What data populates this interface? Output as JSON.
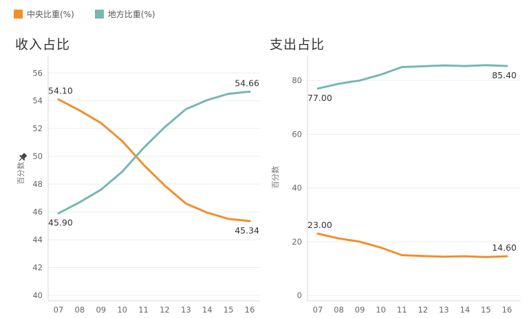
{
  "legend": [
    {
      "label": "中央比重(%)",
      "color": "#F28E2B"
    },
    {
      "label": "地方比重(%)",
      "color": "#76B7B2"
    }
  ],
  "colors": {
    "central": "#F28E2B",
    "local": "#76B7B2",
    "grid": "#EEEEEE",
    "axis": "#D5D5D5"
  },
  "icons": {
    "pin": "pin-icon"
  },
  "chart_data": [
    {
      "type": "line",
      "title": "收入占比",
      "ylabel": "百分数",
      "x": [
        "07",
        "08",
        "09",
        "10",
        "11",
        "12",
        "13",
        "14",
        "15",
        "16"
      ],
      "ylim": [
        39.6,
        57.2
      ],
      "yticks": [
        40,
        42,
        44,
        46,
        48,
        50,
        52,
        54,
        56
      ],
      "grid": true,
      "series": [
        {
          "name": "中央比重(%)",
          "key": "central",
          "values": [
            54.1,
            53.3,
            52.4,
            51.1,
            49.4,
            47.9,
            46.6,
            45.95,
            45.5,
            45.34
          ],
          "labels": [
            {
              "index": 0,
              "text": "54.10",
              "pos": "above"
            },
            {
              "index": 9,
              "text": "45.34",
              "pos": "below"
            }
          ]
        },
        {
          "name": "地方比重(%)",
          "key": "local",
          "values": [
            45.9,
            46.7,
            47.6,
            48.9,
            50.6,
            52.1,
            53.4,
            54.05,
            54.5,
            54.66
          ],
          "labels": [
            {
              "index": 0,
              "text": "45.90",
              "pos": "below"
            },
            {
              "index": 9,
              "text": "54.66",
              "pos": "above"
            }
          ]
        }
      ]
    },
    {
      "type": "line",
      "title": "支出占比",
      "ylabel": "百分数",
      "x": [
        "07",
        "08",
        "09",
        "10",
        "11",
        "12",
        "13",
        "14",
        "15",
        "16"
      ],
      "ylim": [
        -2,
        89
      ],
      "yticks": [
        0,
        20,
        40,
        60,
        80
      ],
      "grid": true,
      "series": [
        {
          "name": "中央比重(%)",
          "key": "central",
          "values": [
            23.0,
            21.2,
            20.0,
            17.8,
            15.0,
            14.7,
            14.4,
            14.6,
            14.3,
            14.6
          ],
          "labels": [
            {
              "index": 0,
              "text": "23.00",
              "pos": "above"
            },
            {
              "index": 9,
              "text": "14.60",
              "pos": "above"
            }
          ]
        },
        {
          "name": "地方比重(%)",
          "key": "local",
          "values": [
            77.0,
            78.8,
            80.0,
            82.2,
            85.0,
            85.3,
            85.6,
            85.4,
            85.7,
            85.4
          ],
          "labels": [
            {
              "index": 0,
              "text": "77.00",
              "pos": "below"
            },
            {
              "index": 9,
              "text": "85.40",
              "pos": "below"
            }
          ]
        }
      ]
    }
  ]
}
